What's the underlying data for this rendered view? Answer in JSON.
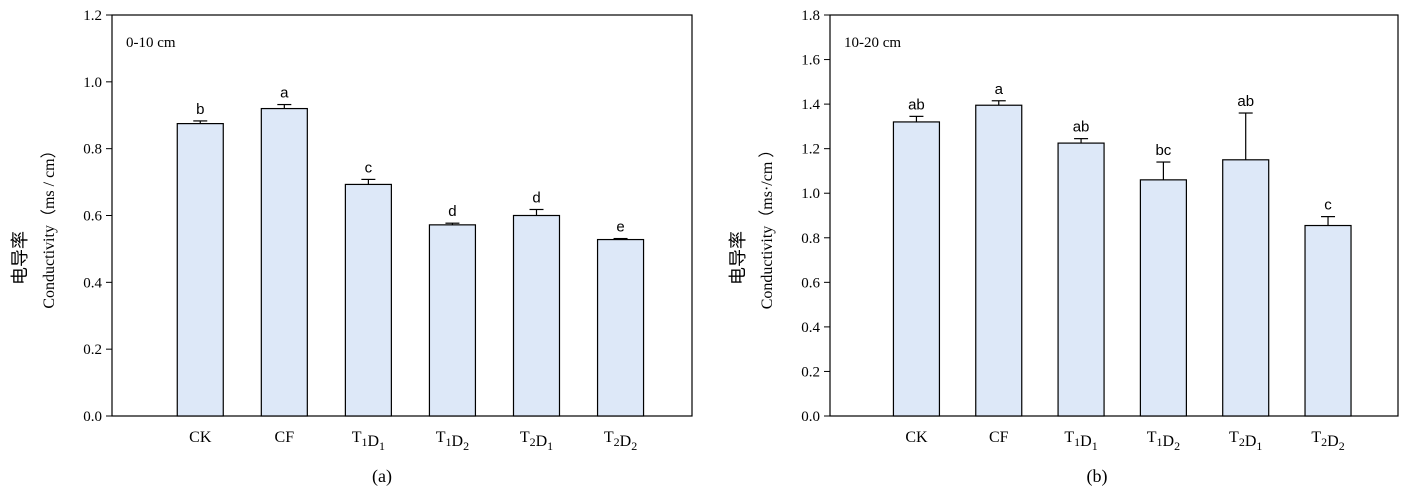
{
  "colors": {
    "bar_fill": "#dde8f8",
    "stroke": "#000000"
  },
  "chart_data": [
    {
      "type": "bar",
      "panel_label": "(a)",
      "depth_label": "0-10 cm",
      "ylabel_zh": "电导率",
      "ylabel": "Conductivity（ms / cm）",
      "ylim": [
        0,
        1.2
      ],
      "yticks": [
        "0.0",
        "0.2",
        "0.4",
        "0.6",
        "0.8",
        "1.0",
        "1.2"
      ],
      "categories": [
        {
          "base": "CK",
          "parts": []
        },
        {
          "base": "CF",
          "parts": []
        },
        {
          "base": "",
          "parts": [
            [
              "T",
              "1"
            ],
            [
              "D",
              "1"
            ]
          ]
        },
        {
          "base": "",
          "parts": [
            [
              "T",
              "1"
            ],
            [
              "D",
              "2"
            ]
          ]
        },
        {
          "base": "",
          "parts": [
            [
              "T",
              "2"
            ],
            [
              "D",
              "1"
            ]
          ]
        },
        {
          "base": "",
          "parts": [
            [
              "T",
              "2"
            ],
            [
              "D",
              "2"
            ]
          ]
        }
      ],
      "values": [
        0.875,
        0.92,
        0.693,
        0.572,
        0.6,
        0.528
      ],
      "errors": [
        0.008,
        0.012,
        0.015,
        0.005,
        0.018,
        0.003
      ],
      "significance": [
        "b",
        "a",
        "c",
        "d",
        "d",
        "e"
      ]
    },
    {
      "type": "bar",
      "panel_label": "(b)",
      "depth_label": "10-20 cm",
      "ylabel_zh": "电导率",
      "ylabel": "Conductivity（ms·/cm ）",
      "ylim": [
        0,
        1.8
      ],
      "yticks": [
        "0.0",
        "0.2",
        "0.4",
        "0.6",
        "0.8",
        "1.0",
        "1.2",
        "1.4",
        "1.6",
        "1.8"
      ],
      "categories": [
        {
          "base": "CK",
          "parts": []
        },
        {
          "base": "CF",
          "parts": []
        },
        {
          "base": "",
          "parts": [
            [
              "T",
              "1"
            ],
            [
              "D",
              "1"
            ]
          ]
        },
        {
          "base": "",
          "parts": [
            [
              "T",
              "1"
            ],
            [
              "D",
              "2"
            ]
          ]
        },
        {
          "base": "",
          "parts": [
            [
              "T",
              "2"
            ],
            [
              "D",
              "1"
            ]
          ]
        },
        {
          "base": "",
          "parts": [
            [
              "T",
              "2"
            ],
            [
              "D",
              "2"
            ]
          ]
        }
      ],
      "values": [
        1.32,
        1.395,
        1.225,
        1.06,
        1.15,
        0.855
      ],
      "errors": [
        0.025,
        0.02,
        0.02,
        0.08,
        0.21,
        0.04
      ],
      "significance": [
        "ab",
        "a",
        "ab",
        "bc",
        "ab",
        "c"
      ]
    }
  ]
}
